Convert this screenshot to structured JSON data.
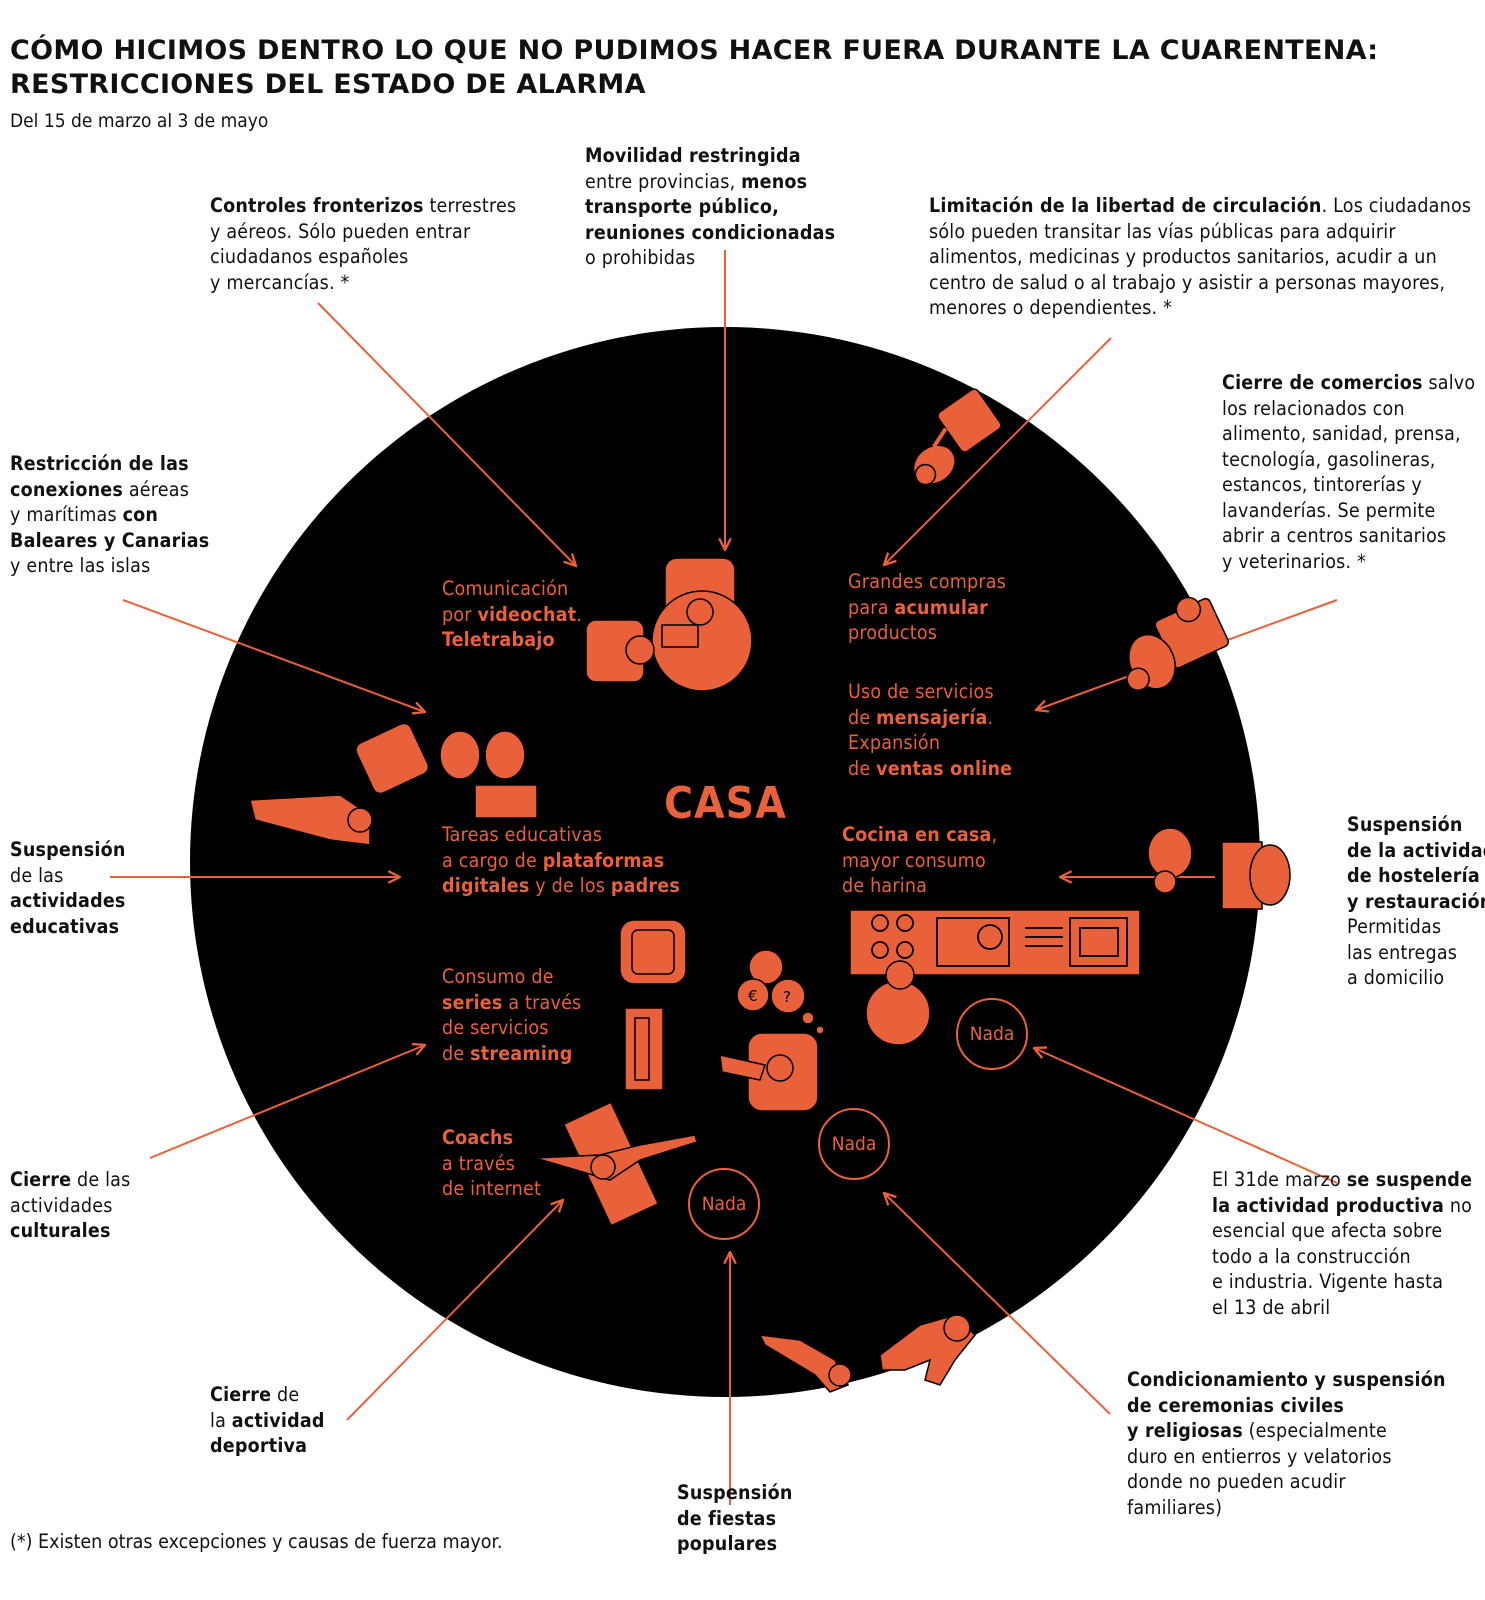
{
  "title": {
    "line1": "CÓMO HICIMOS DENTRO LO QUE NO PUDIMOS HACER FUERA DURANTE LA CUARENTENA:",
    "line2": "RESTRICCIONES DEL ESTADO DE ALARMA"
  },
  "subtitle": "Del 15 de marzo al 3 de mayo",
  "center_label": "CASA",
  "footnote": "(*) Existen otras excepciones y causas de fuerza mayor.",
  "colors": {
    "accent": "#e8613a",
    "circle": "#000000",
    "text": "#111111"
  },
  "icons": [
    "person-at-desk-icon",
    "shopping-cart-icon",
    "delivery-person-icon",
    "students-icon",
    "restaurant-bar-icon",
    "kitchen-stove-icon",
    "armchair-icon",
    "tv-icon",
    "money-thought-icon",
    "person-on-sofa-icon",
    "exercise-mat-icon",
    "procession-people-icon"
  ],
  "outer": {
    "border": {
      "b1": "Controles fronterizos",
      "t1": " terrestres",
      "l2": "y aéreos. Sólo pueden entrar",
      "l3": "ciudadanos españoles",
      "l4": "y mercancías. *"
    },
    "mobility": {
      "b1": "Movilidad restringida",
      "l2a": "entre provincias, ",
      "b2": "menos",
      "b3": "transporte público,",
      "b4": "reuniones condicionadas",
      "l5": "o prohibidas"
    },
    "circulation": {
      "b1": "Limitación de la libertad de circulación",
      "t1": ". Los ciudadanos",
      "l2": "sólo pueden transitar las vías públicas para adquirir",
      "l3": "alimentos, medicinas y productos sanitarios, acudir a un",
      "l4": "centro de salud o al trabajo y asistir a personas mayores,",
      "l5": "menores o dependientes. *"
    },
    "shops": {
      "b1": "Cierre de comercios",
      "t1": " salvo",
      "l2": "los relacionados con",
      "l3": "alimento, sanidad, prensa,",
      "l4": "tecnología, gasolineras,",
      "l5": "estancos, tintorerías y",
      "l6": "lavanderías. Se permite",
      "l7": "abrir a centros sanitarios",
      "l8": "y veterinarios. *"
    },
    "connections": {
      "b1": "Restricción de las",
      "b2": "conexiones",
      "t2": " aéreas",
      "l3a": "y marítimas ",
      "b3": "con",
      "b4": "Baleares y Canarias",
      "l5": "y entre las islas"
    },
    "education": {
      "b1": "Suspensión",
      "l2": "de las",
      "b3": "actividades",
      "b4": "educativas"
    },
    "hospitality": {
      "b1": "Suspensión",
      "b2": "de la actividad",
      "b3": "de hostelería",
      "b4": "y restauración.",
      "l5": "Permitidas",
      "l6": "las entregas",
      "l7": "a domicilio"
    },
    "culture": {
      "b1": "Cierre",
      "t1": " de las",
      "l2": "actividades",
      "b3": "culturales"
    },
    "production": {
      "t1": "El 31de marzo ",
      "b1": "se suspende",
      "b2": "la actividad productiva",
      "t2": " no",
      "l3": "esencial que afecta sobre",
      "l4": "todo a la construcción",
      "l5": "e industria. Vigente hasta",
      "l6": "el 13 de abril"
    },
    "sport": {
      "b1": "Cierre",
      "t1": " de",
      "l2": "la ",
      "b2": "actividad",
      "b3": "deportiva"
    },
    "festivals": {
      "b1": "Suspensión",
      "b2": "de fiestas",
      "b3": "populares"
    },
    "ceremonies": {
      "b1": "Condicionamiento y suspensión",
      "b2": "de ceremonias civiles",
      "b3": "y religiosas",
      "t3": " (especialmente",
      "l4": "duro en entierros y velatorios",
      "l5": "donde no pueden acudir",
      "l6": "familiares)"
    }
  },
  "inner": {
    "video": {
      "l1": "Comunicación",
      "l2a": "por ",
      "b2": "videochat",
      "t2": ".",
      "b3": "Teletrabajo"
    },
    "purchases": {
      "l1": "Grandes compras",
      "l2a": "para ",
      "b2": "acumular",
      "l3": "productos"
    },
    "delivery": {
      "l1": "Uso de servicios",
      "l2a": "de ",
      "b2": "mensajería",
      "t2": ".",
      "l3": "Expansión",
      "l4a": "de ",
      "b4": "ventas online"
    },
    "education": {
      "l1": "Tareas educativas",
      "l2a": "a cargo de ",
      "b2": "plataformas",
      "b3": "digitales",
      "t3": " y de los ",
      "b3b": "padres"
    },
    "cooking": {
      "b1": "Cocina en casa",
      "t1": ",",
      "l2": "mayor consumo",
      "l3": "de harina"
    },
    "series": {
      "l1": "Consumo de",
      "b2": "series",
      "t2": " a través",
      "l3": "de servicios",
      "l4a": "de ",
      "b4": "streaming"
    },
    "coaches": {
      "b1": "Coachs",
      "l2": "a través",
      "l3": "de internet"
    },
    "nada": [
      "Nada",
      "Nada",
      "Nada"
    ]
  }
}
